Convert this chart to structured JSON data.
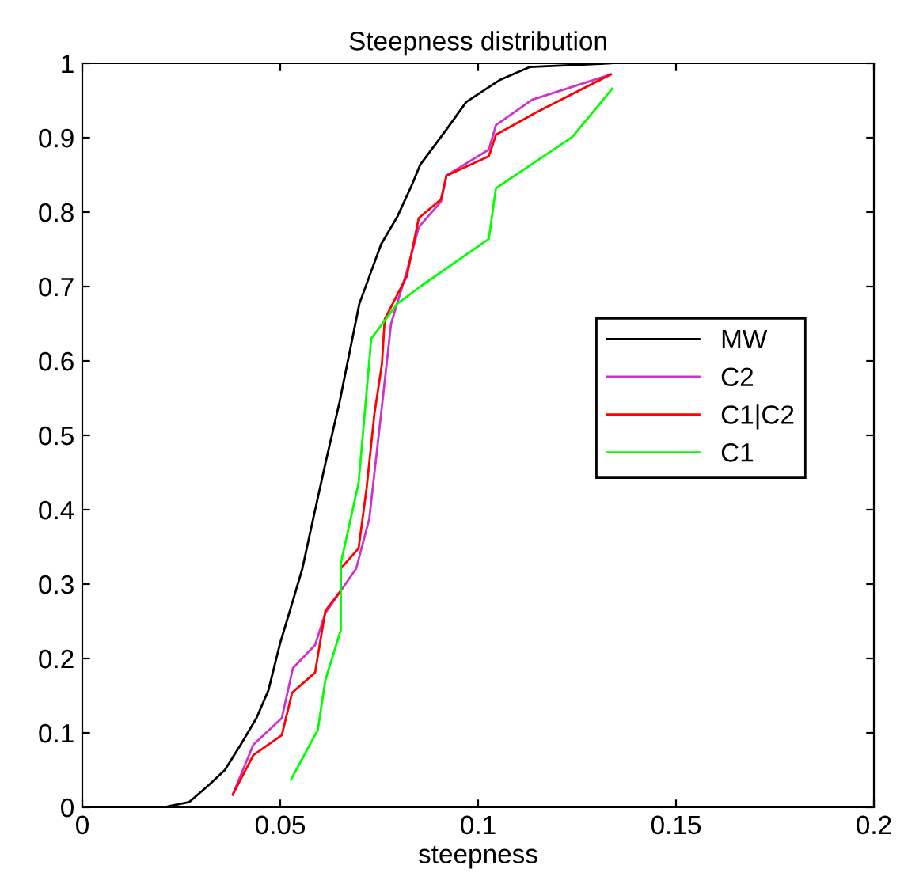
{
  "chart_data": {
    "type": "line",
    "title": "Steepness distribution",
    "xlabel": "steepness",
    "xlim": [
      0,
      0.2
    ],
    "ylim": [
      0,
      1
    ],
    "xticks": [
      0,
      0.05,
      0.1,
      0.15,
      0.2
    ],
    "yticks": [
      0,
      0.1,
      0.2,
      0.3,
      0.4,
      0.5,
      0.6,
      0.7,
      0.8,
      0.9,
      1
    ],
    "grid": false,
    "legend": "right",
    "marker": "none",
    "line_style": "solid",
    "series": [
      {
        "name": "MW",
        "color": "#000000",
        "x": [
          0.0205,
          0.027,
          0.032,
          0.036,
          0.04,
          0.044,
          0.047,
          0.05,
          0.053,
          0.0556,
          0.058,
          0.0614,
          0.065,
          0.07,
          0.0755,
          0.0796,
          0.0833,
          0.0854,
          0.092,
          0.097,
          0.1056,
          0.113,
          0.1335
        ],
        "values": [
          0,
          0.007,
          0.03,
          0.05,
          0.084,
          0.12,
          0.157,
          0.221,
          0.274,
          0.321,
          0.38,
          0.462,
          0.545,
          0.677,
          0.757,
          0.794,
          0.837,
          0.864,
          0.911,
          0.948,
          0.978,
          0.995,
          1.0
        ]
      },
      {
        "name": "C2",
        "color": "#cc33cc",
        "x": [
          0.038,
          0.0432,
          0.0504,
          0.0532,
          0.0588,
          0.0614,
          0.0692,
          0.0725,
          0.0762,
          0.078,
          0.0818,
          0.085,
          0.0906,
          0.092,
          0.1027,
          0.1045,
          0.1136,
          0.1335
        ],
        "values": [
          0.017,
          0.084,
          0.12,
          0.187,
          0.218,
          0.261,
          0.321,
          0.388,
          0.563,
          0.65,
          0.717,
          0.78,
          0.814,
          0.849,
          0.884,
          0.917,
          0.951,
          0.985
        ]
      },
      {
        "name": "C1|C2",
        "color": "#ff0000",
        "x": [
          0.038,
          0.0432,
          0.0504,
          0.053,
          0.0588,
          0.0614,
          0.0653,
          0.0653,
          0.0698,
          0.0718,
          0.0738,
          0.0757,
          0.0764,
          0.082,
          0.085,
          0.0906,
          0.092,
          0.1027,
          0.1045,
          0.1147,
          0.1335
        ],
        "values": [
          0.017,
          0.07,
          0.097,
          0.154,
          0.181,
          0.264,
          0.291,
          0.321,
          0.348,
          0.428,
          0.529,
          0.596,
          0.656,
          0.714,
          0.792,
          0.817,
          0.849,
          0.875,
          0.904,
          0.934,
          0.985
        ]
      },
      {
        "name": "C1",
        "color": "#00ff00",
        "x": [
          0.0527,
          0.0595,
          0.0614,
          0.0653,
          0.0653,
          0.0698,
          0.073,
          0.0796,
          0.0854,
          0.1027,
          0.1045,
          0.1238,
          0.1339
        ],
        "values": [
          0.037,
          0.104,
          0.171,
          0.238,
          0.328,
          0.436,
          0.63,
          0.677,
          0.7,
          0.764,
          0.832,
          0.901,
          0.966
        ]
      }
    ]
  }
}
